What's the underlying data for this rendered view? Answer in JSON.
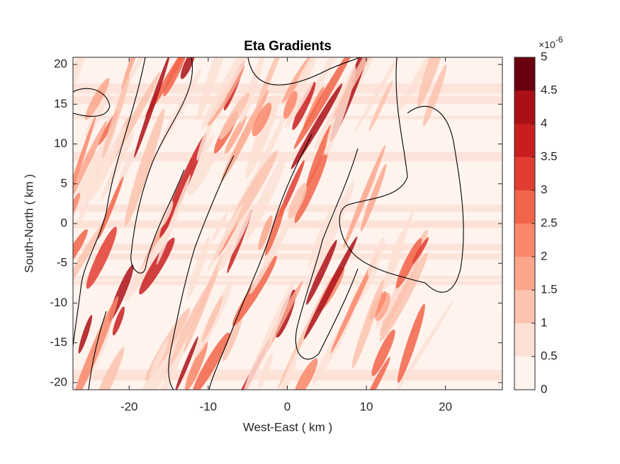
{
  "chart_data": {
    "type": "contourf",
    "title": "Eta Gradients",
    "xlabel": "West-East ( km )",
    "ylabel": "South-North ( km )",
    "xlim": [
      -27.1,
      27.2
    ],
    "ylim": [
      -20.9,
      20.9
    ],
    "xticks": [
      -20,
      -10,
      0,
      10,
      20
    ],
    "yticks": [
      -20,
      -15,
      -10,
      -5,
      0,
      5,
      10,
      15,
      20
    ],
    "colorbar": {
      "lim": [
        0,
        5
      ],
      "ticks": [
        0,
        0.5,
        1,
        1.5,
        2,
        2.5,
        3,
        3.5,
        4,
        4.5,
        5
      ],
      "exponent_base": "×10",
      "exponent": "-6",
      "colors": [
        "#fff3ee",
        "#fde0d5",
        "#fcc3ae",
        "#fba68c",
        "#f9876a",
        "#f26449",
        "#e23d33",
        "#c91e20",
        "#ab1016",
        "#6a000d"
      ]
    }
  }
}
